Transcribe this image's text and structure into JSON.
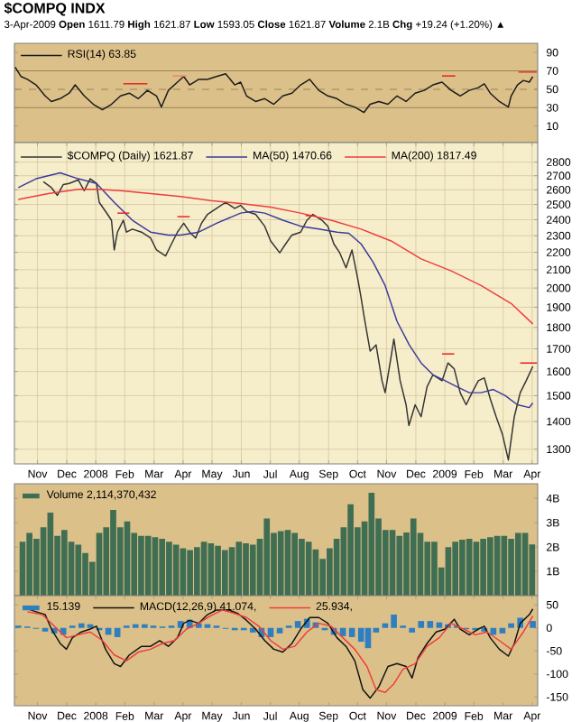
{
  "chart_data": [
    {
      "type": "line",
      "title": "$COMPQ INDX",
      "subtitle": "3-Apr-2009 **Open** 1611.79 **High** 1621.87 **Low** 1593.05 **Close** 1621.87 **Volume** 2.1B **Chg** +19.24 (+1.20%) ▲",
      "xlim": [
        2007.767,
        2009.266
      ],
      "ylim": [
        -8,
        100
      ],
      "yticks": [
        10,
        30,
        50,
        70,
        90
      ],
      "tick_labels": "y",
      "legend": "top left",
      "ref_lines": [
        {
          "axis": "y",
          "value": 70,
          "color": "#9a8356"
        },
        {
          "axis": "y",
          "value": 30,
          "color": "#9a8356"
        },
        {
          "axis": "y",
          "value": 50,
          "color": "#9a8356",
          "line_style": "dashed"
        }
      ],
      "series": [
        {
          "name": "RSI(14) 63.85",
          "color": "#1a1a1a",
          "x": [
            2007.769,
            2007.786,
            2007.804,
            2007.829,
            2007.855,
            2007.873,
            2007.898,
            2007.924,
            2007.941,
            2007.967,
            2007.993,
            2008.019,
            2008.045,
            2008.071,
            2008.096,
            2008.122,
            2008.148,
            2008.174,
            2008.188,
            2008.208,
            2008.234,
            2008.252,
            2008.269,
            2008.295,
            2008.32,
            2008.346,
            2008.372,
            2008.398,
            2008.415,
            2008.432,
            2008.458,
            2008.484,
            2008.51,
            2008.536,
            2008.562,
            2008.587,
            2008.613,
            2008.639,
            2008.665,
            2008.691,
            2008.717,
            2008.742,
            2008.768,
            2008.786,
            2008.811,
            2008.837,
            2008.863,
            2008.889,
            2008.915,
            2008.941,
            2008.966,
            2008.992,
            2009.018,
            2009.044,
            2009.07,
            2009.096,
            2009.113,
            2009.13,
            2009.156,
            2009.182,
            2009.19,
            2009.208,
            2009.225,
            2009.242,
            2009.252
          ],
          "values": [
            74.1,
            63.9,
            60.8,
            54.8,
            42.8,
            36.7,
            39.8,
            45.8,
            54.8,
            42.8,
            33.7,
            27.7,
            33.7,
            42.8,
            45.8,
            39.8,
            48.8,
            42.8,
            30.7,
            48.8,
            57.8,
            63.9,
            54.8,
            60.8,
            60.8,
            63.9,
            66.9,
            54.8,
            57.8,
            42.8,
            36.7,
            39.8,
            33.7,
            42.8,
            45.8,
            54.8,
            60.8,
            48.8,
            42.8,
            39.8,
            33.7,
            30.7,
            24.7,
            33.7,
            36.7,
            33.7,
            42.8,
            36.7,
            45.8,
            48.8,
            54.8,
            57.8,
            48.8,
            42.8,
            48.8,
            51.8,
            56.0,
            45.8,
            36.7,
            30.7,
            42.8,
            54.8,
            59.6,
            57.8,
            63.9
          ]
        },
        {
          "color": "#e8201c",
          "x": [
            2008.079,
            2008.148
          ],
          "values": [
            56.0,
            56.0
          ]
        },
        {
          "color": "#f08070",
          "x": [
            2008.22,
            2008.26
          ],
          "values": [
            64.5,
            64.5
          ]
        },
        {
          "color": "#e8201c",
          "x": [
            2008.992,
            2009.03
          ],
          "values": [
            64.5,
            64.5
          ]
        },
        {
          "color": "#e8201c",
          "x": [
            2009.211,
            2009.263
          ],
          "values": [
            68.7,
            68.7
          ]
        }
      ]
    },
    {
      "type": "line",
      "log": "y",
      "grid": true,
      "legend": "top left",
      "xlim": [
        2007.767,
        2009.266
      ],
      "ylim": [
        1250,
        2950
      ],
      "xticks": [
        {
          "value": 2007.833,
          "label": "Nov"
        },
        {
          "value": 2007.917,
          "label": "Dec"
        },
        {
          "value": 2008.0,
          "label": "2008"
        },
        {
          "value": 2008.083,
          "label": "Feb"
        },
        {
          "value": 2008.167,
          "label": "Mar"
        },
        {
          "value": 2008.25,
          "label": "Apr"
        },
        {
          "value": 2008.333,
          "label": "May"
        },
        {
          "value": 2008.417,
          "label": "Jun"
        },
        {
          "value": 2008.5,
          "label": "Jul"
        },
        {
          "value": 2008.583,
          "label": "Aug"
        },
        {
          "value": 2008.667,
          "label": "Sep"
        },
        {
          "value": 2008.75,
          "label": "Oct"
        },
        {
          "value": 2008.833,
          "label": "Nov"
        },
        {
          "value": 2008.917,
          "label": "Dec"
        },
        {
          "value": 2009.0,
          "label": "2009"
        },
        {
          "value": 2009.083,
          "label": "Feb"
        },
        {
          "value": 2009.167,
          "label": "Mar"
        },
        {
          "value": 2009.25,
          "label": "Apr"
        }
      ],
      "yticks": [
        1300,
        1400,
        1500,
        1600,
        1700,
        1800,
        1900,
        2000,
        2100,
        2200,
        2300,
        2400,
        2500,
        2600,
        2700,
        2800
      ],
      "series": [
        {
          "name": "$COMPQ (Daily) 1621.87",
          "color": "#333333",
          "x": [
            2007.85,
            2007.873,
            2007.89,
            2007.907,
            2007.924,
            2007.95,
            2007.967,
            2007.984,
            2008.002,
            2008.01,
            2008.028,
            2008.045,
            2008.053,
            2008.062,
            2008.079,
            2008.088,
            2008.105,
            2008.131,
            2008.157,
            2008.174,
            2008.2,
            2008.217,
            2008.234,
            2008.252,
            2008.269,
            2008.286,
            2008.303,
            2008.32,
            2008.346,
            2008.372,
            2008.398,
            2008.415,
            2008.432,
            2008.458,
            2008.484,
            2008.501,
            2008.527,
            2008.544,
            2008.562,
            2008.587,
            2008.605,
            2008.622,
            2008.648,
            2008.665,
            2008.682,
            2008.699,
            2008.717,
            2008.734,
            2008.751,
            2008.76,
            2008.768,
            2008.777,
            2008.786,
            2008.803,
            2008.82,
            2008.829,
            2008.846,
            2008.854,
            2008.872,
            2008.889,
            2008.897,
            2008.915,
            2008.932,
            2008.949,
            2008.966,
            2008.992,
            2009.009,
            2009.027,
            2009.044,
            2009.061,
            2009.078,
            2009.096,
            2009.113,
            2009.13,
            2009.147,
            2009.165,
            2009.182,
            2009.199,
            2009.216,
            2009.233,
            2009.252
          ],
          "values": [
            2657,
            2615,
            2562,
            2637,
            2645,
            2670,
            2594,
            2678,
            2645,
            2514,
            2454,
            2397,
            2214,
            2322,
            2397,
            2322,
            2341,
            2322,
            2286,
            2214,
            2179,
            2250,
            2322,
            2378,
            2322,
            2286,
            2378,
            2435,
            2474,
            2514,
            2474,
            2494,
            2454,
            2435,
            2359,
            2268,
            2197,
            2250,
            2304,
            2322,
            2397,
            2435,
            2397,
            2359,
            2250,
            2197,
            2111,
            2214,
            2045,
            1950,
            1860,
            1773,
            1690,
            1718,
            1561,
            1512,
            1664,
            1745,
            1561,
            1464,
            1385,
            1464,
            1418,
            1536,
            1586,
            1561,
            1637,
            1611,
            1512,
            1464,
            1512,
            1561,
            1573,
            1488,
            1418,
            1353,
            1263,
            1418,
            1512,
            1561,
            1622
          ]
        },
        {
          "name": "MA(50) 1470.66",
          "color": "#3a3a9c",
          "x": [
            2007.778,
            2007.829,
            2007.898,
            2007.95,
            2008.002,
            2008.053,
            2008.105,
            2008.157,
            2008.208,
            2008.243,
            2008.295,
            2008.346,
            2008.415,
            2008.45,
            2008.484,
            2008.536,
            2008.587,
            2008.639,
            2008.691,
            2008.725,
            2008.76,
            2008.794,
            2008.829,
            2008.863,
            2008.898,
            2008.932,
            2008.966,
            2009.001,
            2009.035,
            2009.07,
            2009.104,
            2009.139,
            2009.173,
            2009.208,
            2009.242,
            2009.252
          ],
          "values": [
            2615,
            2678,
            2721,
            2678,
            2645,
            2514,
            2397,
            2322,
            2304,
            2304,
            2322,
            2378,
            2443,
            2454,
            2443,
            2397,
            2359,
            2341,
            2322,
            2315,
            2250,
            2145,
            2013,
            1830,
            1718,
            1637,
            1586,
            1561,
            1536,
            1512,
            1512,
            1525,
            1500,
            1464,
            1453,
            1471
          ]
        },
        {
          "name": "MA(200) 1817.49",
          "color": "#f03c3c",
          "x": [
            2007.778,
            2007.864,
            2007.95,
            2008.002,
            2008.071,
            2008.157,
            2008.243,
            2008.329,
            2008.415,
            2008.501,
            2008.587,
            2008.674,
            2008.76,
            2008.846,
            2008.932,
            2009.018,
            2009.104,
            2009.19,
            2009.252
          ],
          "values": [
            2534,
            2574,
            2603,
            2603,
            2594,
            2574,
            2554,
            2526,
            2506,
            2482,
            2443,
            2397,
            2341,
            2268,
            2162,
            2094,
            2013,
            1919,
            1817
          ]
        },
        {
          "color": "#e8201c",
          "x": [
            2008.062,
            2008.096
          ],
          "values": [
            2443,
            2443
          ]
        },
        {
          "color": "#e8201c",
          "x": [
            2008.234,
            2008.269
          ],
          "values": [
            2420,
            2420
          ]
        },
        {
          "color": "#e8201c",
          "x": [
            2008.601,
            2008.629
          ],
          "values": [
            2427,
            2427
          ]
        },
        {
          "color": "#e8201c",
          "x": [
            2008.992,
            2009.027
          ],
          "values": [
            1677,
            1677
          ]
        },
        {
          "color": "#e8201c",
          "x": [
            2009.216,
            2009.264
          ],
          "values": [
            1637,
            1637
          ]
        }
      ]
    },
    {
      "type": "bar",
      "legend": "top left",
      "tick_labels": "y",
      "xlim": [
        2007.767,
        2009.266
      ],
      "ylim": [
        0,
        4.6
      ],
      "yticks": [
        {
          "value": 1,
          "label": "1B"
        },
        {
          "value": 2,
          "label": "2B"
        },
        {
          "value": 3,
          "label": "3B"
        },
        {
          "value": 4,
          "label": "4B"
        }
      ],
      "series": [
        {
          "name": "Volume 2,114,370,432",
          "color": "#3f6e52",
          "x": [
            2007.79,
            2007.81,
            2007.83,
            2007.85,
            2007.87,
            2007.89,
            2007.91,
            2007.93,
            2007.95,
            2007.97,
            2007.99,
            2008.01,
            2008.03,
            2008.05,
            2008.07,
            2008.09,
            2008.11,
            2008.13,
            2008.15,
            2008.17,
            2008.19,
            2008.21,
            2008.23,
            2008.25,
            2008.27,
            2008.29,
            2008.31,
            2008.33,
            2008.35,
            2008.37,
            2008.39,
            2008.41,
            2008.43,
            2008.45,
            2008.47,
            2008.49,
            2008.51,
            2008.53,
            2008.55,
            2008.57,
            2008.59,
            2008.61,
            2008.63,
            2008.65,
            2008.67,
            2008.69,
            2008.71,
            2008.73,
            2008.75,
            2008.77,
            2008.79,
            2008.81,
            2008.83,
            2008.85,
            2008.87,
            2008.89,
            2008.91,
            2008.93,
            2008.95,
            2008.97,
            2008.99,
            2009.01,
            2009.03,
            2009.05,
            2009.07,
            2009.09,
            2009.11,
            2009.13,
            2009.15,
            2009.17,
            2009.19,
            2009.21,
            2009.23,
            2009.25
          ],
          "values": [
            2.22,
            2.58,
            2.34,
            2.81,
            3.41,
            2.46,
            2.7,
            2.22,
            2.1,
            1.75,
            1.39,
            2.58,
            2.81,
            3.52,
            2.81,
            3.05,
            2.58,
            2.46,
            2.46,
            2.4,
            2.34,
            2.22,
            2.1,
            1.95,
            1.87,
            1.99,
            2.22,
            2.15,
            2.05,
            1.87,
            1.99,
            2.22,
            2.15,
            2.1,
            2.34,
            3.17,
            2.58,
            2.65,
            2.7,
            2.58,
            2.34,
            2.22,
            1.9,
            1.51,
            1.95,
            2.34,
            2.81,
            3.76,
            2.81,
            3.05,
            4.23,
            3.17,
            2.7,
            2.7,
            2.46,
            2.6,
            3.17,
            2.58,
            2.22,
            2.22,
            1.16,
            1.99,
            2.22,
            2.3,
            2.34,
            2.22,
            2.34,
            2.4,
            2.46,
            2.46,
            2.34,
            2.58,
            2.58,
            2.11
          ]
        }
      ]
    },
    {
      "type": "line",
      "legend": "top left",
      "xlim": [
        2007.767,
        2009.266
      ],
      "ylim": [
        -169,
        70
      ],
      "xticks": [
        {
          "value": 2007.833,
          "label": "Nov"
        },
        {
          "value": 2007.917,
          "label": "Dec"
        },
        {
          "value": 2008.0,
          "label": "2008"
        },
        {
          "value": 2008.083,
          "label": "Feb"
        },
        {
          "value": 2008.167,
          "label": "Mar"
        },
        {
          "value": 2008.25,
          "label": "Apr"
        },
        {
          "value": 2008.333,
          "label": "May"
        },
        {
          "value": 2008.417,
          "label": "Jun"
        },
        {
          "value": 2008.5,
          "label": "Jul"
        },
        {
          "value": 2008.583,
          "label": "Aug"
        },
        {
          "value": 2008.667,
          "label": "Sep"
        },
        {
          "value": 2008.75,
          "label": "Oct"
        },
        {
          "value": 2008.833,
          "label": "Nov"
        },
        {
          "value": 2008.917,
          "label": "Dec"
        },
        {
          "value": 2009.0,
          "label": "2009"
        },
        {
          "value": 2009.083,
          "label": "Feb"
        },
        {
          "value": 2009.167,
          "label": "Mar"
        },
        {
          "value": 2009.25,
          "label": "Apr"
        }
      ],
      "yticks": [
        -150,
        -100,
        -50,
        0,
        50
      ],
      "series": [
        {
          "name": "15.139",
          "type": "bar",
          "color": "#2f7fc0",
          "x": [
            2007.778,
            2007.804,
            2007.829,
            2007.855,
            2007.881,
            2007.907,
            2007.933,
            2007.959,
            2007.984,
            2008.01,
            2008.036,
            2008.062,
            2008.088,
            2008.114,
            2008.14,
            2008.165,
            2008.191,
            2008.217,
            2008.243,
            2008.269,
            2008.295,
            2008.32,
            2008.346,
            2008.372,
            2008.398,
            2008.424,
            2008.45,
            2008.475,
            2008.501,
            2008.527,
            2008.553,
            2008.579,
            2008.605,
            2008.63,
            2008.656,
            2008.682,
            2008.708,
            2008.734,
            2008.76,
            2008.78,
            2008.803,
            2008.829,
            2008.854,
            2008.88,
            2008.906,
            2008.932,
            2008.958,
            2008.984,
            2009.009,
            2009.035,
            2009.061,
            2009.087,
            2009.113,
            2009.139,
            2009.165,
            2009.19,
            2009.216,
            2009.252
          ],
          "values": [
            5,
            3,
            -2,
            -8,
            -12,
            -15,
            5,
            10,
            8,
            -5,
            -15,
            -20,
            5,
            8,
            8,
            5,
            3,
            5,
            15,
            18,
            10,
            8,
            5,
            -2,
            -5,
            -5,
            -10,
            -20,
            -20,
            -12,
            5,
            15,
            20,
            12,
            -5,
            -15,
            -18,
            -20,
            -30,
            -44,
            -10,
            10,
            29,
            5,
            -10,
            15,
            15,
            12,
            8,
            5,
            -3,
            -5,
            -8,
            -15,
            -12,
            10,
            22,
            15
          ]
        },
        {
          "name": "MACD(12,26,9) 41.074,",
          "color": "#111111",
          "x": [
            2007.804,
            2007.829,
            2007.855,
            2007.873,
            2007.898,
            2007.916,
            2007.933,
            2007.959,
            2007.984,
            2008.002,
            2008.028,
            2008.053,
            2008.071,
            2008.096,
            2008.131,
            2008.157,
            2008.183,
            2008.208,
            2008.234,
            2008.252,
            2008.269,
            2008.295,
            2008.32,
            2008.346,
            2008.381,
            2008.407,
            2008.432,
            2008.458,
            2008.484,
            2008.51,
            2008.536,
            2008.562,
            2008.587,
            2008.613,
            2008.639,
            2008.665,
            2008.691,
            2008.717,
            2008.742,
            2008.765,
            2008.786,
            2008.811,
            2008.837,
            2008.863,
            2008.889,
            2008.906,
            2008.923,
            2008.949,
            2008.975,
            2009.001,
            2009.027,
            2009.044,
            2009.07,
            2009.096,
            2009.113,
            2009.13,
            2009.156,
            2009.182,
            2009.199,
            2009.216,
            2009.242,
            2009.252
          ],
          "values": [
            41.3,
            35.0,
            28.8,
            -2.5,
            -33.8,
            -46.3,
            -21.3,
            -8.8,
            -2.5,
            3.8,
            -46.3,
            -77.5,
            -83.8,
            -58.8,
            -40.0,
            -40.0,
            -27.5,
            -40.0,
            -21.3,
            10.0,
            16.3,
            10.0,
            28.8,
            38.8,
            38.8,
            31.3,
            16.3,
            -2.5,
            -27.5,
            -46.3,
            -52.5,
            -33.8,
            -2.5,
            22.5,
            22.5,
            10.0,
            -21.3,
            -40.0,
            -71.3,
            -133.8,
            -152.5,
            -127.5,
            -83.8,
            -77.5,
            -83.8,
            -108.8,
            -65.0,
            -33.8,
            -8.8,
            -2.5,
            18.8,
            -2.5,
            -15.0,
            -2.5,
            3.8,
            -21.3,
            -46.3,
            -61.3,
            -33.8,
            10.0,
            28.8,
            41.1
          ]
        },
        {
          "name": "25.934,",
          "color": "#f03c3c",
          "x": [
            2007.804,
            2007.847,
            2007.881,
            2007.916,
            2007.95,
            2007.984,
            2008.019,
            2008.053,
            2008.088,
            2008.122,
            2008.157,
            2008.191,
            2008.226,
            2008.26,
            2008.295,
            2008.329,
            2008.363,
            2008.398,
            2008.432,
            2008.467,
            2008.501,
            2008.536,
            2008.57,
            2008.605,
            2008.639,
            2008.674,
            2008.708,
            2008.742,
            2008.777,
            2008.803,
            2008.829,
            2008.854,
            2008.88,
            2008.915,
            2008.949,
            2008.984,
            2009.018,
            2009.053,
            2009.087,
            2009.121,
            2009.156,
            2009.19,
            2009.225,
            2009.252
          ],
          "values": [
            35.0,
            28.8,
            3.8,
            -21.3,
            -15.0,
            -8.8,
            -27.5,
            -58.8,
            -71.3,
            -52.5,
            -46.3,
            -33.8,
            -27.5,
            -2.5,
            10.0,
            26.3,
            38.8,
            31.3,
            22.5,
            3.8,
            -27.5,
            -46.3,
            -40.0,
            -8.8,
            10.0,
            3.8,
            -21.3,
            -46.3,
            -83.8,
            -133.8,
            -140.0,
            -121.3,
            -90.0,
            -77.5,
            -40.0,
            -21.3,
            10.0,
            -2.5,
            -15.0,
            -8.8,
            -27.5,
            -46.3,
            -8.8,
            25.9
          ]
        }
      ]
    }
  ]
}
